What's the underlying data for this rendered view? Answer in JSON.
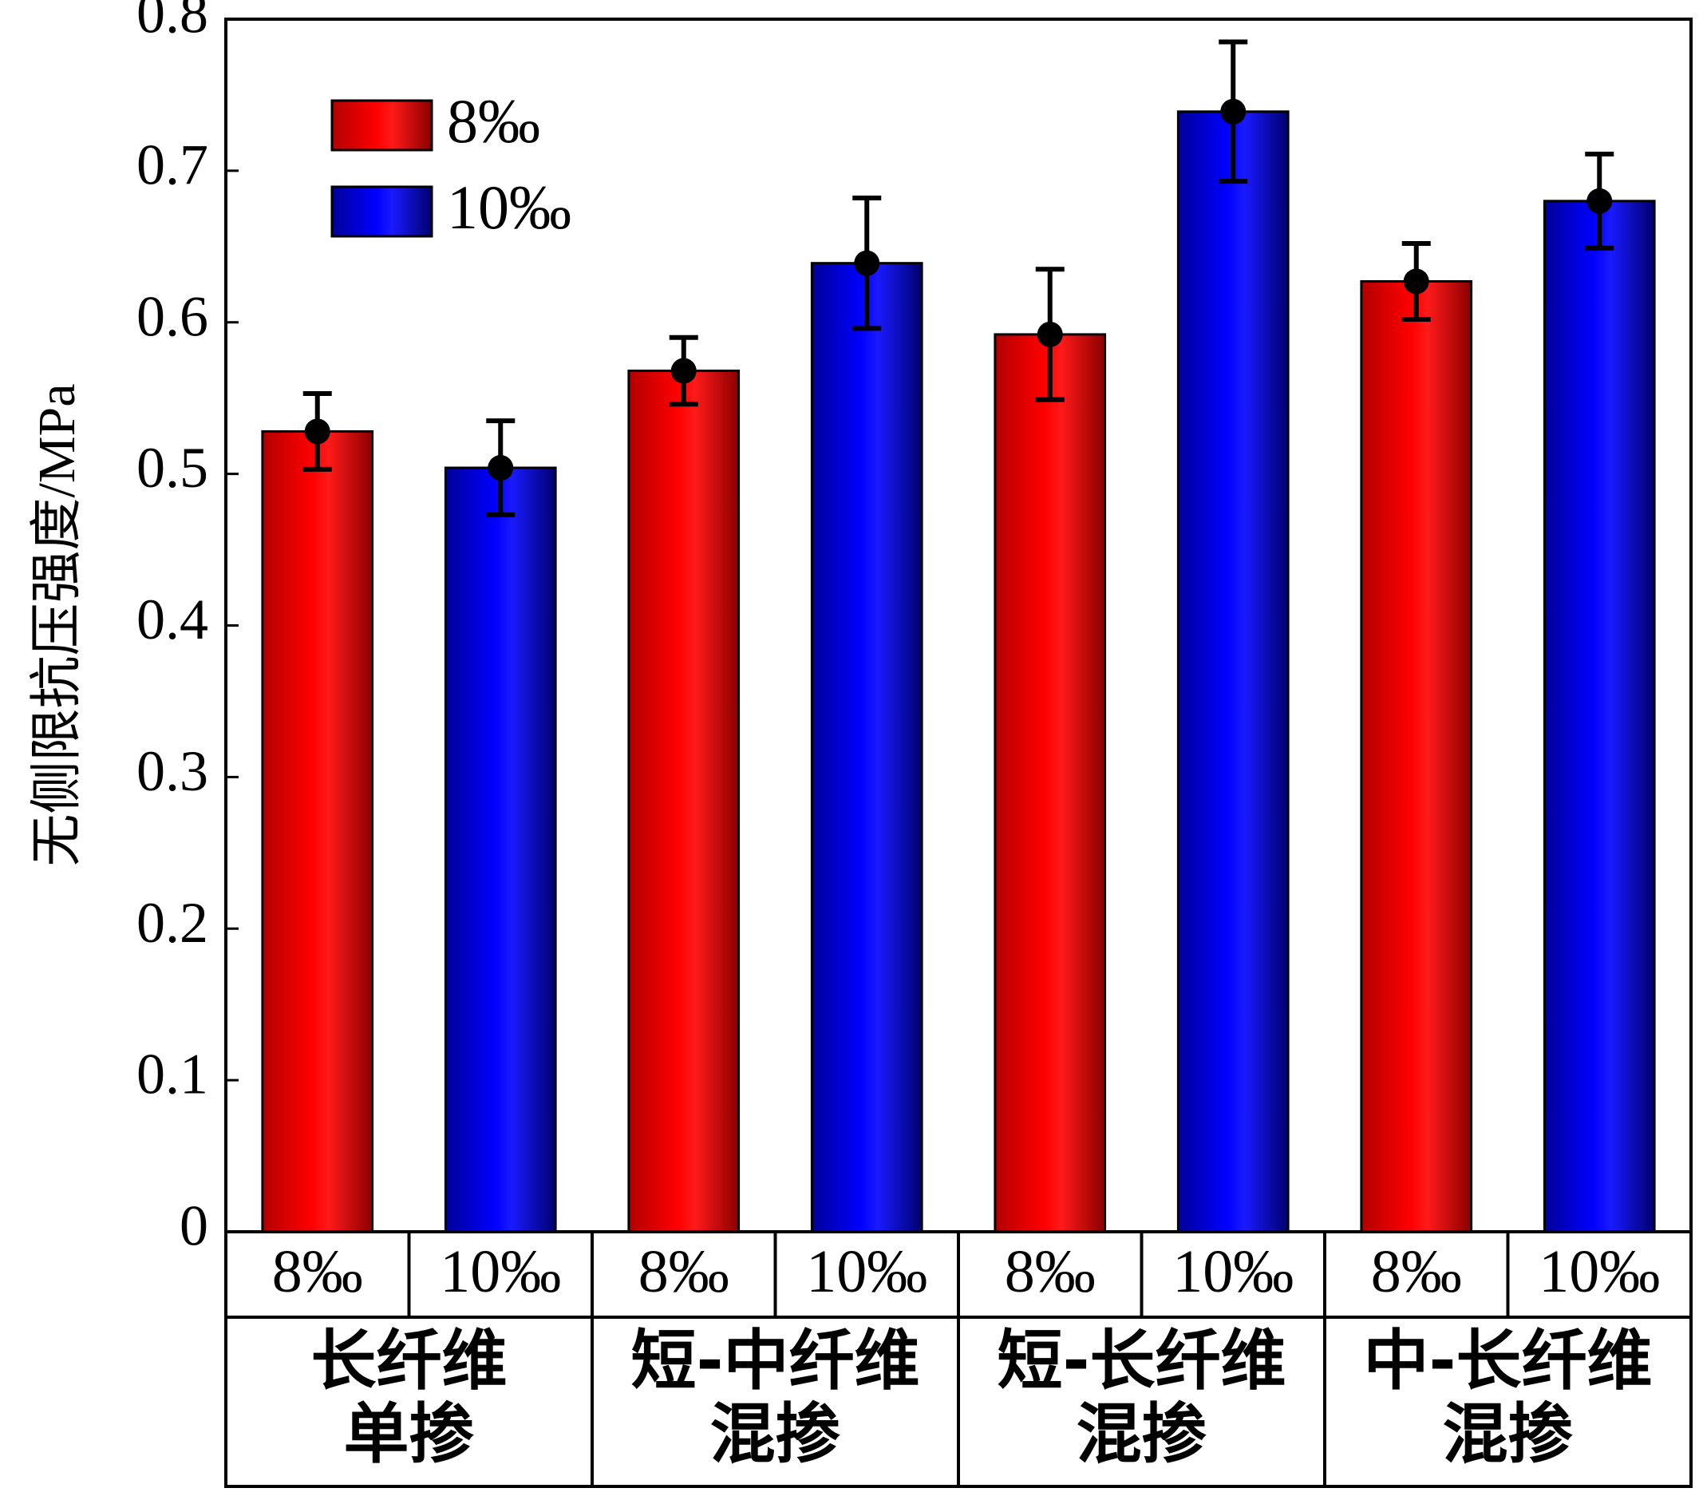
{
  "chart_data": {
    "type": "bar",
    "ylabel": "无侧限抗压强度/MPa",
    "ylim": [
      0,
      0.8
    ],
    "yticks": [
      "0",
      "0.1",
      "0.2",
      "0.3",
      "0.4",
      "0.5",
      "0.6",
      "0.7",
      "0.8"
    ],
    "groups": [
      {
        "lines": [
          "长纤维",
          "单掺"
        ],
        "sub": [
          "8‰",
          "10‰"
        ]
      },
      {
        "lines": [
          "短-中纤维",
          "混掺"
        ],
        "sub": [
          "8‰",
          "10‰"
        ]
      },
      {
        "lines": [
          "短-长纤维",
          "混掺"
        ],
        "sub": [
          "8‰",
          "10‰"
        ]
      },
      {
        "lines": [
          "中-长纤维",
          "混掺"
        ],
        "sub": [
          "8‰",
          "10‰"
        ]
      }
    ],
    "series": [
      {
        "name": "8‰",
        "color": "#ff0000",
        "values": [
          0.528,
          0.568,
          0.592,
          0.627
        ],
        "errors": [
          0.025,
          0.022,
          0.043,
          0.025
        ]
      },
      {
        "name": "10‰",
        "color": "#0000ff",
        "values": [
          0.504,
          0.639,
          0.739,
          0.68
        ],
        "errors": [
          0.031,
          0.043,
          0.046,
          0.031
        ]
      }
    ],
    "grid": false,
    "legend_position": "top-left"
  }
}
